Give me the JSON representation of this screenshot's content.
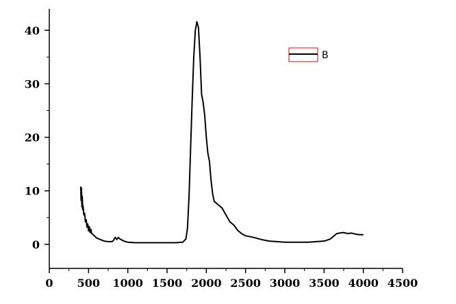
{
  "chart_data": {
    "type": "line",
    "title": "",
    "xlabel": "",
    "ylabel": "",
    "xlim": [
      0,
      4500
    ],
    "ylim": [
      -4.5,
      44
    ],
    "x_ticks": [
      0,
      500,
      1000,
      1500,
      2000,
      2500,
      3000,
      3500,
      4000,
      4500
    ],
    "y_ticks": [
      0,
      10,
      20,
      30,
      40
    ],
    "grid": false,
    "legend": {
      "position": "top-right",
      "boxed": true
    },
    "series": [
      {
        "name": "B",
        "color": "#000000",
        "points": [
          [
            400,
            10.8
          ],
          [
            405,
            8.2
          ],
          [
            410,
            10.5
          ],
          [
            415,
            7.0
          ],
          [
            420,
            9.0
          ],
          [
            425,
            6.5
          ],
          [
            430,
            7.2
          ],
          [
            440,
            5.5
          ],
          [
            450,
            5.8
          ],
          [
            460,
            4.2
          ],
          [
            470,
            4.6
          ],
          [
            480,
            3.2
          ],
          [
            490,
            3.8
          ],
          [
            500,
            2.5
          ],
          [
            510,
            3.3
          ],
          [
            520,
            2.2
          ],
          [
            530,
            2.8
          ],
          [
            540,
            2.0
          ],
          [
            560,
            1.8
          ],
          [
            580,
            1.5
          ],
          [
            600,
            1.2
          ],
          [
            650,
            0.9
          ],
          [
            700,
            0.6
          ],
          [
            750,
            0.5
          ],
          [
            800,
            0.5
          ],
          [
            820,
            0.8
          ],
          [
            840,
            1.3
          ],
          [
            860,
            0.9
          ],
          [
            880,
            1.3
          ],
          [
            900,
            1.0
          ],
          [
            950,
            0.6
          ],
          [
            1000,
            0.4
          ],
          [
            1100,
            0.3
          ],
          [
            1200,
            0.3
          ],
          [
            1300,
            0.3
          ],
          [
            1400,
            0.3
          ],
          [
            1500,
            0.3
          ],
          [
            1600,
            0.3
          ],
          [
            1700,
            0.4
          ],
          [
            1740,
            1.0
          ],
          [
            1760,
            3.0
          ],
          [
            1780,
            9.0
          ],
          [
            1800,
            18.0
          ],
          [
            1820,
            27.0
          ],
          [
            1840,
            35.0
          ],
          [
            1860,
            40.0
          ],
          [
            1880,
            41.6
          ],
          [
            1900,
            40.5
          ],
          [
            1920,
            35.0
          ],
          [
            1940,
            28.0
          ],
          [
            1960,
            26.5
          ],
          [
            1980,
            24.0
          ],
          [
            2000,
            20.0
          ],
          [
            2020,
            17.0
          ],
          [
            2040,
            15.5
          ],
          [
            2060,
            12.0
          ],
          [
            2080,
            9.5
          ],
          [
            2100,
            8.0
          ],
          [
            2120,
            7.8
          ],
          [
            2150,
            7.4
          ],
          [
            2200,
            6.8
          ],
          [
            2250,
            5.5
          ],
          [
            2300,
            4.2
          ],
          [
            2350,
            3.6
          ],
          [
            2400,
            2.6
          ],
          [
            2450,
            2.0
          ],
          [
            2500,
            1.6
          ],
          [
            2600,
            1.3
          ],
          [
            2700,
            0.9
          ],
          [
            2800,
            0.6
          ],
          [
            2900,
            0.5
          ],
          [
            3000,
            0.4
          ],
          [
            3100,
            0.4
          ],
          [
            3200,
            0.4
          ],
          [
            3300,
            0.4
          ],
          [
            3400,
            0.5
          ],
          [
            3500,
            0.6
          ],
          [
            3580,
            1.0
          ],
          [
            3620,
            1.5
          ],
          [
            3660,
            2.0
          ],
          [
            3700,
            2.1
          ],
          [
            3750,
            2.2
          ],
          [
            3800,
            2.0
          ],
          [
            3850,
            2.1
          ],
          [
            3900,
            1.9
          ],
          [
            3950,
            1.8
          ],
          [
            4000,
            1.8
          ]
        ]
      }
    ]
  }
}
